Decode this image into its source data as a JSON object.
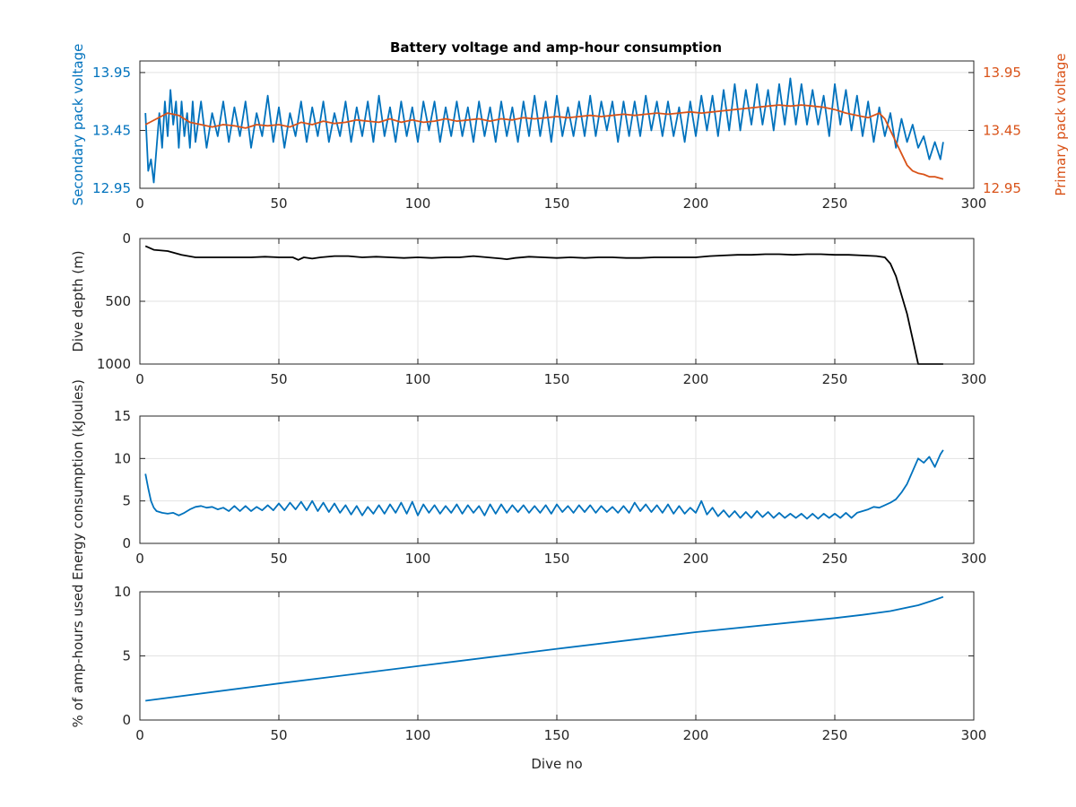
{
  "figure": {
    "title": "Battery voltage and amp-hour consumption",
    "colors": {
      "blue": "#0072bd",
      "orange": "#d95319",
      "black": "#000000",
      "grid": "#e2e2e2",
      "axis": "#262626"
    }
  },
  "chart_data": [
    {
      "type": "line",
      "title": "Battery voltage and amp-hour consumption",
      "xlabel": "",
      "ylabel": "Secondary pack voltage",
      "ylabel_right": "Primary pack voltage",
      "xlim": [
        0,
        300
      ],
      "ylim": [
        12.95,
        14.05
      ],
      "ylim_right": [
        12.95,
        14.05
      ],
      "xticks": [
        0,
        50,
        100,
        150,
        200,
        250,
        300
      ],
      "yticks": [
        12.95,
        13.45,
        13.95
      ],
      "ytick_labels": [
        "12.95",
        "13.45",
        "13.95"
      ],
      "yticks_right": [
        12.95,
        13.45,
        13.95
      ],
      "ytick_labels_right": [
        "12.95",
        "13.45",
        "13.95"
      ],
      "grid": true,
      "series": [
        {
          "color": "#0072bd",
          "axis": "left",
          "x": [
            2,
            3,
            4,
            5,
            6,
            7,
            8,
            9,
            10,
            11,
            12,
            13,
            14,
            15,
            16,
            17,
            18,
            19,
            20,
            22,
            24,
            26,
            28,
            30,
            32,
            34,
            36,
            38,
            40,
            42,
            44,
            46,
            48,
            50,
            52,
            54,
            56,
            58,
            60,
            62,
            64,
            66,
            68,
            70,
            72,
            74,
            76,
            78,
            80,
            82,
            84,
            86,
            88,
            90,
            92,
            94,
            96,
            98,
            100,
            102,
            104,
            106,
            108,
            110,
            112,
            114,
            116,
            118,
            120,
            122,
            124,
            126,
            128,
            130,
            132,
            134,
            136,
            138,
            140,
            142,
            144,
            146,
            148,
            150,
            152,
            154,
            156,
            158,
            160,
            162,
            164,
            166,
            168,
            170,
            172,
            174,
            176,
            178,
            180,
            182,
            184,
            186,
            188,
            190,
            192,
            194,
            196,
            198,
            200,
            202,
            204,
            206,
            208,
            210,
            212,
            214,
            216,
            218,
            220,
            222,
            224,
            226,
            228,
            230,
            232,
            234,
            236,
            238,
            240,
            242,
            244,
            246,
            248,
            250,
            252,
            254,
            256,
            258,
            260,
            262,
            264,
            266,
            268,
            270,
            272,
            274,
            276,
            278,
            280,
            282,
            284,
            286,
            288,
            289
          ],
          "values": [
            13.6,
            13.1,
            13.2,
            13.0,
            13.3,
            13.6,
            13.3,
            13.7,
            13.4,
            13.8,
            13.5,
            13.7,
            13.3,
            13.7,
            13.4,
            13.6,
            13.3,
            13.7,
            13.35,
            13.7,
            13.3,
            13.6,
            13.4,
            13.7,
            13.35,
            13.65,
            13.4,
            13.7,
            13.3,
            13.6,
            13.4,
            13.75,
            13.35,
            13.65,
            13.3,
            13.6,
            13.4,
            13.7,
            13.35,
            13.65,
            13.4,
            13.7,
            13.35,
            13.6,
            13.4,
            13.7,
            13.35,
            13.65,
            13.4,
            13.7,
            13.35,
            13.75,
            13.4,
            13.65,
            13.35,
            13.7,
            13.4,
            13.65,
            13.35,
            13.7,
            13.45,
            13.7,
            13.35,
            13.65,
            13.4,
            13.7,
            13.4,
            13.65,
            13.35,
            13.7,
            13.4,
            13.65,
            13.35,
            13.7,
            13.4,
            13.65,
            13.35,
            13.7,
            13.4,
            13.75,
            13.4,
            13.7,
            13.35,
            13.75,
            13.4,
            13.65,
            13.4,
            13.7,
            13.4,
            13.75,
            13.4,
            13.7,
            13.45,
            13.7,
            13.35,
            13.7,
            13.4,
            13.7,
            13.4,
            13.75,
            13.45,
            13.7,
            13.4,
            13.7,
            13.4,
            13.65,
            13.35,
            13.7,
            13.4,
            13.75,
            13.45,
            13.75,
            13.4,
            13.8,
            13.45,
            13.85,
            13.45,
            13.8,
            13.5,
            13.85,
            13.5,
            13.8,
            13.45,
            13.85,
            13.5,
            13.9,
            13.5,
            13.85,
            13.5,
            13.8,
            13.5,
            13.75,
            13.4,
            13.85,
            13.5,
            13.8,
            13.45,
            13.75,
            13.4,
            13.7,
            13.35,
            13.65,
            13.4,
            13.6,
            13.3,
            13.55,
            13.35,
            13.5,
            13.3,
            13.4,
            13.2,
            13.35,
            13.2,
            13.35
          ]
        },
        {
          "color": "#d95319",
          "axis": "right",
          "x": [
            2,
            6,
            10,
            14,
            18,
            22,
            26,
            30,
            34,
            38,
            42,
            46,
            50,
            54,
            58,
            62,
            66,
            70,
            74,
            78,
            82,
            86,
            90,
            94,
            98,
            102,
            106,
            110,
            114,
            118,
            122,
            126,
            130,
            134,
            138,
            142,
            146,
            150,
            154,
            158,
            162,
            166,
            170,
            174,
            178,
            182,
            186,
            190,
            194,
            198,
            202,
            206,
            210,
            214,
            218,
            222,
            226,
            230,
            234,
            238,
            242,
            246,
            250,
            254,
            258,
            262,
            266,
            268,
            270,
            272,
            274,
            276,
            278,
            280,
            282,
            284,
            286,
            289
          ],
          "values": [
            13.5,
            13.55,
            13.6,
            13.58,
            13.52,
            13.5,
            13.48,
            13.5,
            13.49,
            13.47,
            13.5,
            13.49,
            13.5,
            13.48,
            13.52,
            13.5,
            13.53,
            13.51,
            13.52,
            13.54,
            13.53,
            13.52,
            13.55,
            13.52,
            13.54,
            13.52,
            13.53,
            13.55,
            13.53,
            13.54,
            13.55,
            13.53,
            13.55,
            13.54,
            13.56,
            13.55,
            13.56,
            13.57,
            13.56,
            13.57,
            13.58,
            13.57,
            13.58,
            13.59,
            13.58,
            13.59,
            13.6,
            13.59,
            13.6,
            13.61,
            13.6,
            13.61,
            13.62,
            13.63,
            13.64,
            13.65,
            13.66,
            13.67,
            13.66,
            13.67,
            13.66,
            13.65,
            13.63,
            13.6,
            13.58,
            13.56,
            13.6,
            13.55,
            13.45,
            13.35,
            13.25,
            13.15,
            13.1,
            13.08,
            13.07,
            13.05,
            13.05,
            13.03
          ]
        }
      ]
    },
    {
      "type": "line",
      "xlabel": "",
      "ylabel": "Dive depth (m)",
      "xlim": [
        0,
        300
      ],
      "ylim": [
        0,
        1000
      ],
      "y_reversed": true,
      "xticks": [
        0,
        50,
        100,
        150,
        200,
        250,
        300
      ],
      "yticks": [
        0,
        500,
        1000
      ],
      "ytick_labels": [
        "0",
        "500",
        "1000"
      ],
      "grid": true,
      "series": [
        {
          "color": "#000000",
          "x": [
            2,
            5,
            10,
            15,
            20,
            25,
            30,
            35,
            40,
            45,
            50,
            55,
            57,
            59,
            62,
            65,
            70,
            75,
            80,
            85,
            90,
            95,
            100,
            105,
            110,
            115,
            120,
            125,
            130,
            132,
            135,
            140,
            145,
            150,
            155,
            160,
            165,
            170,
            175,
            180,
            185,
            190,
            195,
            200,
            205,
            210,
            215,
            220,
            225,
            230,
            235,
            240,
            245,
            250,
            255,
            260,
            265,
            268,
            270,
            272,
            274,
            276,
            278,
            280,
            289
          ],
          "values": [
            60,
            90,
            100,
            130,
            150,
            150,
            150,
            150,
            150,
            145,
            150,
            150,
            170,
            150,
            160,
            150,
            140,
            140,
            150,
            145,
            150,
            155,
            150,
            155,
            150,
            150,
            140,
            150,
            160,
            165,
            155,
            145,
            150,
            155,
            150,
            155,
            150,
            150,
            155,
            155,
            150,
            150,
            150,
            150,
            140,
            135,
            130,
            130,
            125,
            125,
            130,
            125,
            125,
            130,
            130,
            135,
            140,
            150,
            200,
            300,
            450,
            600,
            800,
            1000,
            1000
          ]
        }
      ]
    },
    {
      "type": "line",
      "xlabel": "",
      "ylabel": "Energy consumption (kJoules)",
      "xlim": [
        0,
        300
      ],
      "ylim": [
        0,
        15
      ],
      "xticks": [
        0,
        50,
        100,
        150,
        200,
        250,
        300
      ],
      "yticks": [
        0,
        5,
        10,
        15
      ],
      "ytick_labels": [
        "0",
        "5",
        "10",
        "15"
      ],
      "grid": true,
      "series": [
        {
          "color": "#0072bd",
          "x": [
            2,
            3,
            4,
            5,
            6,
            8,
            10,
            12,
            14,
            16,
            18,
            20,
            22,
            24,
            26,
            28,
            30,
            32,
            34,
            36,
            38,
            40,
            42,
            44,
            46,
            48,
            50,
            52,
            54,
            56,
            58,
            60,
            62,
            64,
            66,
            68,
            70,
            72,
            74,
            76,
            78,
            80,
            82,
            84,
            86,
            88,
            90,
            92,
            94,
            96,
            98,
            100,
            102,
            104,
            106,
            108,
            110,
            112,
            114,
            116,
            118,
            120,
            122,
            124,
            126,
            128,
            130,
            132,
            134,
            136,
            138,
            140,
            142,
            144,
            146,
            148,
            150,
            152,
            154,
            156,
            158,
            160,
            162,
            164,
            166,
            168,
            170,
            172,
            174,
            176,
            178,
            180,
            182,
            184,
            186,
            188,
            190,
            192,
            194,
            196,
            198,
            200,
            202,
            204,
            206,
            208,
            210,
            212,
            214,
            216,
            218,
            220,
            222,
            224,
            226,
            228,
            230,
            232,
            234,
            236,
            238,
            240,
            242,
            244,
            246,
            248,
            250,
            252,
            254,
            256,
            258,
            260,
            262,
            264,
            266,
            268,
            270,
            272,
            274,
            276,
            278,
            280,
            282,
            284,
            286,
            288,
            289
          ],
          "values": [
            8.2,
            6.5,
            5.0,
            4.2,
            3.8,
            3.6,
            3.5,
            3.6,
            3.3,
            3.6,
            4.0,
            4.3,
            4.4,
            4.2,
            4.3,
            4.0,
            4.2,
            3.8,
            4.4,
            3.8,
            4.4,
            3.8,
            4.3,
            3.9,
            4.5,
            3.9,
            4.7,
            3.9,
            4.8,
            4.0,
            4.9,
            3.9,
            5.0,
            3.8,
            4.8,
            3.7,
            4.7,
            3.6,
            4.5,
            3.4,
            4.4,
            3.3,
            4.3,
            3.5,
            4.5,
            3.5,
            4.6,
            3.6,
            4.8,
            3.5,
            4.9,
            3.3,
            4.6,
            3.6,
            4.5,
            3.5,
            4.4,
            3.6,
            4.6,
            3.5,
            4.5,
            3.6,
            4.4,
            3.3,
            4.6,
            3.5,
            4.6,
            3.6,
            4.5,
            3.7,
            4.5,
            3.6,
            4.4,
            3.6,
            4.5,
            3.5,
            4.6,
            3.7,
            4.4,
            3.6,
            4.5,
            3.7,
            4.5,
            3.6,
            4.4,
            3.7,
            4.3,
            3.6,
            4.4,
            3.6,
            4.8,
            3.8,
            4.6,
            3.7,
            4.5,
            3.6,
            4.6,
            3.5,
            4.4,
            3.5,
            4.2,
            3.6,
            5.0,
            3.4,
            4.2,
            3.2,
            3.9,
            3.1,
            3.8,
            3.0,
            3.7,
            3.0,
            3.8,
            3.1,
            3.7,
            3.0,
            3.6,
            3.0,
            3.5,
            3.0,
            3.5,
            2.9,
            3.5,
            2.9,
            3.5,
            3.0,
            3.5,
            3.0,
            3.6,
            3.0,
            3.6,
            3.8,
            4.0,
            4.3,
            4.2,
            4.5,
            4.8,
            5.2,
            6.0,
            7.0,
            8.5,
            10.0,
            9.5,
            10.2,
            9.0,
            10.5,
            11.0
          ]
        }
      ]
    },
    {
      "type": "line",
      "xlabel": "Dive no",
      "ylabel": "% of amp-hours used",
      "xlim": [
        0,
        300
      ],
      "ylim": [
        0,
        10
      ],
      "xticks": [
        0,
        50,
        100,
        150,
        200,
        250,
        300
      ],
      "yticks": [
        0,
        5,
        10
      ],
      "ytick_labels": [
        "0",
        "5",
        "10"
      ],
      "grid": true,
      "series": [
        {
          "color": "#0072bd",
          "x": [
            2,
            50,
            100,
            150,
            200,
            250,
            260,
            270,
            280,
            285,
            289
          ],
          "values": [
            1.5,
            2.85,
            4.2,
            5.55,
            6.85,
            7.95,
            8.2,
            8.5,
            8.95,
            9.3,
            9.6
          ]
        }
      ]
    }
  ]
}
